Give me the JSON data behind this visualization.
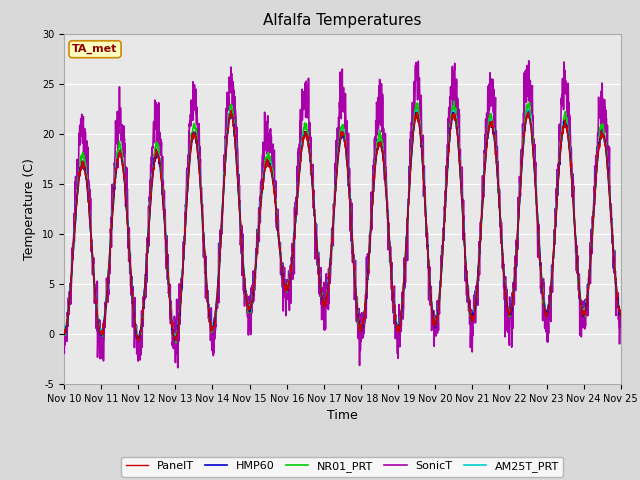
{
  "title": "Alfalfa Temperatures",
  "xlabel": "Time",
  "ylabel": "Temperature (C)",
  "ylim": [
    -5,
    30
  ],
  "n_days": 15,
  "background_color": "#d9d9d9",
  "plot_bg_color": "#e8e8e8",
  "annotation_label": "TA_met",
  "annotation_color": "#8b0000",
  "annotation_bg": "#ffffc0",
  "annotation_border": "#cc8800",
  "series_colors": {
    "PanelT": "#cc0000",
    "HMP60": "#0000cc",
    "NR01_PRT": "#00cc00",
    "SonicT": "#aa00aa",
    "AM25T_PRT": "#00cccc"
  },
  "series_linewidths": {
    "PanelT": 1.0,
    "HMP60": 1.2,
    "NR01_PRT": 1.2,
    "SonicT": 1.2,
    "AM25T_PRT": 1.2
  },
  "xtick_labels": [
    "Nov 10",
    "Nov 11",
    "Nov 12",
    "Nov 13",
    "Nov 14",
    "Nov 15",
    "Nov 16",
    "Nov 17",
    "Nov 18",
    "Nov 19",
    "Nov 20",
    "Nov 21",
    "Nov 22",
    "Nov 23",
    "Nov 24",
    "Nov 25"
  ],
  "ytick_values": [
    -5,
    0,
    5,
    10,
    15,
    20,
    25,
    30
  ],
  "grid_color": "#ffffff",
  "title_fontsize": 11,
  "axis_label_fontsize": 9,
  "tick_fontsize": 7,
  "legend_fontsize": 8
}
